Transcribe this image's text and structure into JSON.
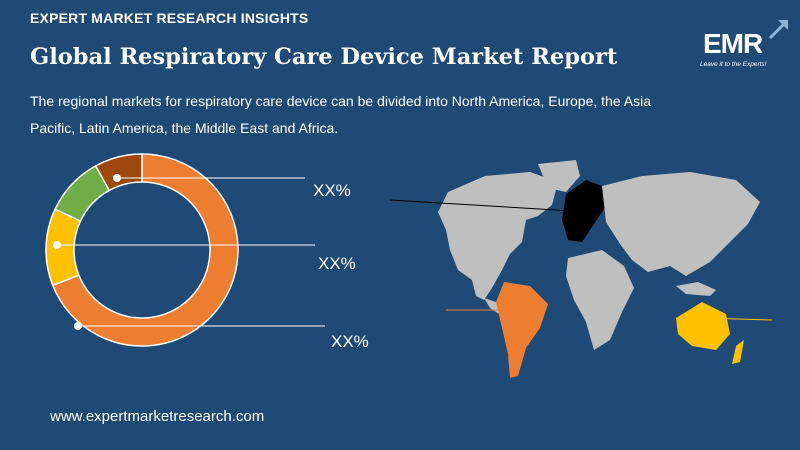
{
  "header": {
    "kicker": "EXPERT MARKET RESEARCH INSIGHTS",
    "title": "Global Respiratory Care Device Market Report",
    "description": "The regional markets for respiratory care device can be divided into North America, Europe, the Asia Pacific, Latin America, the Middle East and Africa."
  },
  "logo": {
    "text": "EMR",
    "tagline": "Leave it to the Experts!"
  },
  "labels": [
    "XX%",
    "XX%",
    "XX%"
  ],
  "footer": {
    "website": "www.expertmarketresearch.com"
  },
  "colors": {
    "background": "#1f4a75",
    "orange": "#ed7d31",
    "yellow": "#ffc000",
    "green": "#70ad47",
    "brown": "#9e480e",
    "land": "#bfbfbf",
    "europe": "#000000"
  },
  "chart_data": {
    "type": "pie",
    "variant": "donut",
    "slices": [
      {
        "value": 69,
        "color": "#ed7d31"
      },
      {
        "value": 13,
        "color": "#ffc000"
      },
      {
        "value": 10,
        "color": "#70ad47"
      },
      {
        "value": 8,
        "color": "#9e480e"
      }
    ],
    "slice_labels": [
      "XX%",
      "XX%",
      "XX%"
    ]
  }
}
